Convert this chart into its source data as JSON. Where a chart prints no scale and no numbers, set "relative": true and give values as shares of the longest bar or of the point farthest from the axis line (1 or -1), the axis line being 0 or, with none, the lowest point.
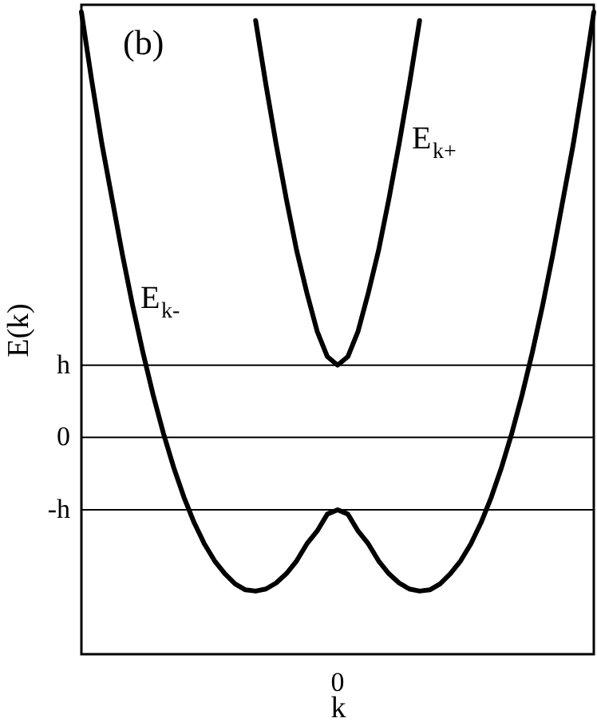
{
  "chart_data": {
    "type": "line",
    "xlabel": "k",
    "ylabel": "E(k)",
    "relative": true,
    "categories": [
      null,
      null,
      null,
      null,
      null,
      null,
      null,
      null,
      null,
      null,
      null,
      null,
      null,
      null,
      null,
      null,
      null,
      null,
      null,
      null,
      null,
      null,
      null,
      null,
      null,
      null,
      null,
      null,
      null,
      null,
      null,
      null,
      null,
      null,
      null,
      null,
      null,
      null,
      null,
      null,
      null,
      null,
      null,
      null,
      null,
      null,
      null,
      null,
      null,
      null,
      null
    ],
    "series": [
      {
        "color": "#000000",
        "values": [
          1,
          0.84,
          0.69,
          0.56,
          0.43,
          0.31,
          0.2,
          0.1,
          0.01,
          -0.07,
          -0.14,
          -0.2,
          -0.25,
          -0.29,
          -0.32,
          -0.344,
          -0.358,
          -0.361,
          -0.356,
          -0.342,
          -0.32,
          -0.29,
          -0.25,
          -0.22,
          -0.18,
          -0.17,
          -0.18,
          -0.22,
          -0.25,
          -0.29,
          -0.32,
          -0.342,
          -0.356,
          -0.361,
          -0.358,
          -0.344,
          -0.32,
          -0.29,
          -0.25,
          -0.2,
          -0.14,
          -0.07,
          0.01,
          0.1,
          0.2,
          0.31,
          0.43,
          0.56,
          0.69,
          0.84,
          1
        ]
      },
      {
        "color": "#000000",
        "values": [
          null,
          null,
          null,
          null,
          null,
          null,
          null,
          null,
          null,
          null,
          null,
          null,
          null,
          null,
          null,
          null,
          null,
          0.98,
          0.83,
          0.69,
          0.56,
          0.44,
          0.34,
          0.25,
          0.19,
          0.17,
          0.19,
          0.25,
          0.34,
          0.44,
          0.56,
          0.69,
          0.83,
          0.98,
          null,
          null,
          null,
          null,
          null,
          null,
          null,
          null,
          null,
          null,
          null,
          null,
          null,
          null,
          null,
          null,
          null
        ]
      }
    ],
    "ref_lines": [
      {
        "axis": "y",
        "value": 0.17,
        "label": "h",
        "color": "#000000"
      },
      {
        "axis": "y",
        "value": 0,
        "label": "0",
        "color": "#000000"
      },
      {
        "axis": "y",
        "value": -0.17,
        "label": "-h",
        "color": "#000000"
      }
    ],
    "annotations": [
      "(b)",
      "0",
      "E$_{k+}$",
      "E$_{k-}$"
    ],
    "marker": "none",
    "line_style": "solid"
  }
}
